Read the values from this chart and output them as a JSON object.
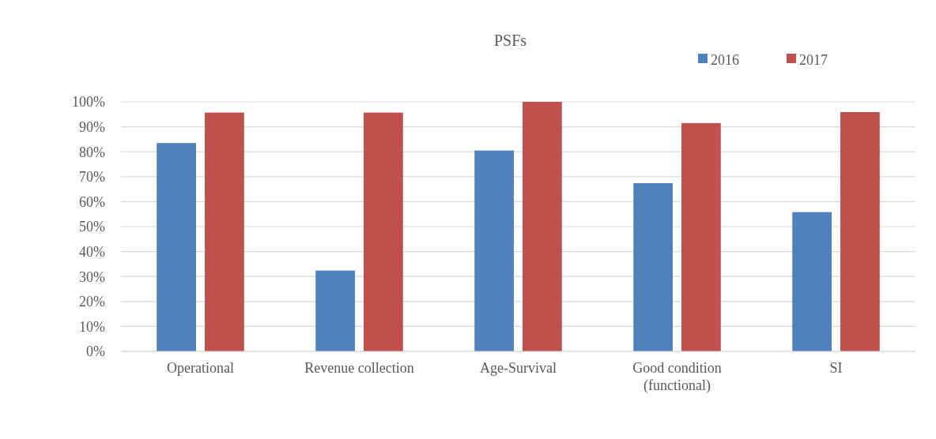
{
  "chart_data": {
    "type": "bar",
    "title": "PSFs",
    "categories": [
      "Operational",
      "Revenue collection",
      "Age-Survival",
      "Good condition (functional)",
      "SI"
    ],
    "series": [
      {
        "name": "2016",
        "color": "#4f81bd",
        "values": [
          83.5,
          32.4,
          80.5,
          67.4,
          55.8
        ]
      },
      {
        "name": "2017",
        "color": "#c0504d",
        "values": [
          95.7,
          95.7,
          100,
          91.5,
          95.9
        ]
      }
    ],
    "ylim": [
      0,
      100
    ],
    "yticks": [
      {
        "value": 0,
        "label": "0%"
      },
      {
        "value": 10,
        "label": "10%"
      },
      {
        "value": 20,
        "label": "20%"
      },
      {
        "value": 30,
        "label": "30%"
      },
      {
        "value": 40,
        "label": "40%"
      },
      {
        "value": 50,
        "label": "50%"
      },
      {
        "value": 60,
        "label": "60%"
      },
      {
        "value": 70,
        "label": "70%"
      },
      {
        "value": 80,
        "label": "80%"
      },
      {
        "value": 90,
        "label": "90%"
      },
      {
        "value": 100,
        "label": "100%"
      }
    ],
    "grid": "y",
    "legend": "top right"
  }
}
